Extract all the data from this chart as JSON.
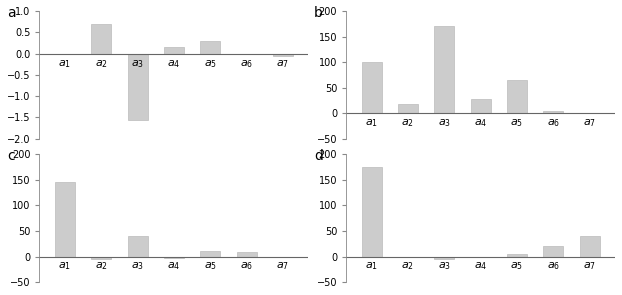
{
  "panel_a": {
    "label": "a",
    "categories": [
      "a_1",
      "a_2",
      "a_3",
      "a_4",
      "a_5",
      "a_6",
      "a_7"
    ],
    "values": [
      0,
      0.7,
      -1.55,
      0.15,
      0.3,
      0,
      -0.05
    ],
    "ylim": [
      -2.0,
      1.0
    ],
    "yticks": [
      1.0,
      0.5,
      0,
      -0.5,
      -1.0,
      -1.5,
      -2.0
    ],
    "zero_line": 0
  },
  "panel_b": {
    "label": "b",
    "categories": [
      "a_1",
      "a_2",
      "a_3",
      "a_4",
      "a_5",
      "a_6",
      "a_7"
    ],
    "values": [
      100,
      18,
      170,
      27,
      65,
      5,
      0
    ],
    "ylim": [
      -50,
      200
    ],
    "yticks": [
      200,
      150,
      100,
      50,
      0,
      -50
    ],
    "zero_line": 0
  },
  "panel_c": {
    "label": "c",
    "categories": [
      "a_1",
      "a_2",
      "a_3",
      "a_4",
      "a_5",
      "a_6",
      "a_7"
    ],
    "values": [
      145,
      -5,
      40,
      -2,
      10,
      8,
      -1
    ],
    "ylim": [
      -50,
      200
    ],
    "yticks": [
      200,
      150,
      100,
      50,
      0,
      -50
    ],
    "zero_line": 0
  },
  "panel_d": {
    "label": "d",
    "categories": [
      "a_1",
      "a_2",
      "a_3",
      "a_4",
      "a_5",
      "a_6",
      "a_7"
    ],
    "values": [
      175,
      0,
      -5,
      0,
      5,
      20,
      40
    ],
    "ylim": [
      -50,
      200
    ],
    "yticks": [
      200,
      150,
      100,
      50,
      0,
      -50
    ],
    "zero_line": 0
  },
  "bar_color": "#cccccc",
  "bar_edgecolor": "#bbbbbb",
  "bar_width": 0.55,
  "cat_fontsize": 8,
  "tick_fontsize": 7,
  "panel_label_fontsize": 10
}
